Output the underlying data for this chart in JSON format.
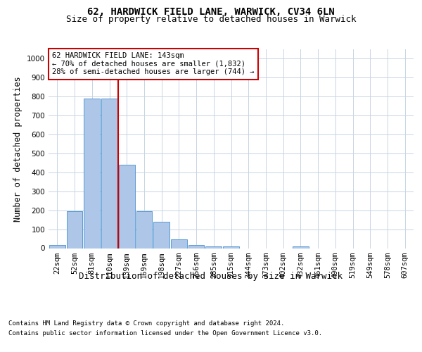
{
  "title1": "62, HARDWICK FIELD LANE, WARWICK, CV34 6LN",
  "title2": "Size of property relative to detached houses in Warwick",
  "xlabel": "Distribution of detached houses by size in Warwick",
  "ylabel": "Number of detached properties",
  "categories": [
    "22sqm",
    "52sqm",
    "81sqm",
    "110sqm",
    "139sqm",
    "169sqm",
    "198sqm",
    "227sqm",
    "256sqm",
    "285sqm",
    "315sqm",
    "344sqm",
    "373sqm",
    "402sqm",
    "432sqm",
    "461sqm",
    "490sqm",
    "519sqm",
    "549sqm",
    "578sqm",
    "607sqm"
  ],
  "values": [
    15,
    195,
    790,
    790,
    440,
    195,
    140,
    45,
    15,
    10,
    10,
    0,
    0,
    0,
    10,
    0,
    0,
    0,
    0,
    0,
    0
  ],
  "bar_color": "#aec6e8",
  "bar_edge_color": "#5b9bd5",
  "redline_color": "#cc0000",
  "annotation_text": "62 HARDWICK FIELD LANE: 143sqm\n← 70% of detached houses are smaller (1,832)\n28% of semi-detached houses are larger (744) →",
  "annotation_box_color": "#ffffff",
  "annotation_box_edge": "#cc0000",
  "footnote1": "Contains HM Land Registry data © Crown copyright and database right 2024.",
  "footnote2": "Contains public sector information licensed under the Open Government Licence v3.0.",
  "ylim": [
    0,
    1050
  ],
  "yticks": [
    0,
    100,
    200,
    300,
    400,
    500,
    600,
    700,
    800,
    900,
    1000
  ],
  "bg_color": "#ffffff",
  "grid_color": "#c8d4e3",
  "title1_fontsize": 10,
  "title2_fontsize": 9,
  "tick_fontsize": 7.5,
  "xlabel_fontsize": 9,
  "ylabel_fontsize": 8.5
}
